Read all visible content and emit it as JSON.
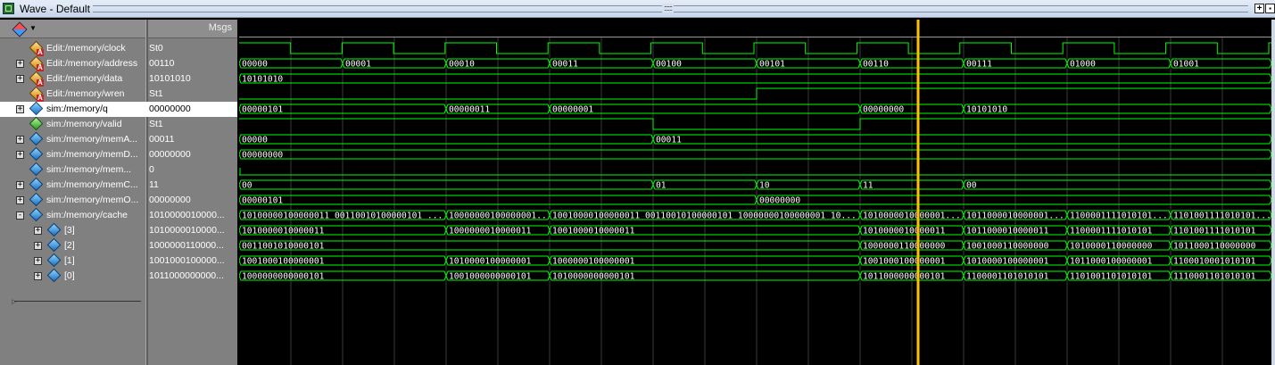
{
  "window": {
    "title": "Wave - Default"
  },
  "header": {
    "msgs_label": "Msgs"
  },
  "signals": [
    {
      "name": "Edit:/memory/clock",
      "value": "St0",
      "icon": "gold-diamond",
      "expander": ""
    },
    {
      "name": "Edit:/memory/address",
      "value": "00110",
      "icon": "gold-diamond",
      "expander": "+"
    },
    {
      "name": "Edit:/memory/data",
      "value": "10101010",
      "icon": "gold-diamond",
      "expander": "+"
    },
    {
      "name": "Edit:/memory/wren",
      "value": "St1",
      "icon": "gold-diamond",
      "expander": ""
    },
    {
      "name": "sim:/memory/q",
      "value": "00000000",
      "icon": "blue-diamond",
      "expander": "+",
      "selected": true
    },
    {
      "name": "sim:/memory/valid",
      "value": "St1",
      "icon": "green-diamond",
      "expander": ""
    },
    {
      "name": "sim:/memory/memA...",
      "value": "00011",
      "icon": "blue-diamond",
      "expander": "+"
    },
    {
      "name": "sim:/memory/memD...",
      "value": "00000000",
      "icon": "blue-diamond",
      "expander": "+"
    },
    {
      "name": "sim:/memory/mem...",
      "value": "0",
      "icon": "blue-diamond",
      "expander": ""
    },
    {
      "name": "sim:/memory/memC...",
      "value": "11",
      "icon": "blue-diamond",
      "expander": "+"
    },
    {
      "name": "sim:/memory/memO...",
      "value": "00000000",
      "icon": "blue-diamond",
      "expander": "+"
    },
    {
      "name": "sim:/memory/cache",
      "value": "1010000010000...",
      "icon": "blue-diamond",
      "expander": "-"
    },
    {
      "name": "[3]",
      "value": "1010000010000...",
      "icon": "blue-diamond",
      "expander": "+"
    },
    {
      "name": "[2]",
      "value": "1000000110000...",
      "icon": "blue-diamond",
      "expander": "+"
    },
    {
      "name": "[1]",
      "value": "1001000100000...",
      "icon": "blue-diamond",
      "expander": "+"
    },
    {
      "name": "[0]",
      "value": "1011000000000...",
      "icon": "blue-diamond",
      "expander": "+"
    }
  ],
  "waves": {
    "address": [
      "00000",
      "00001",
      "00010",
      "00011",
      "00100",
      "00101",
      "00110",
      "00111",
      "01000",
      "01001"
    ],
    "data": [
      "10101010"
    ],
    "q": [
      "00000101",
      "00000011",
      "00000001",
      "00000000",
      "10101010"
    ],
    "memA": [
      "00000",
      "00011"
    ],
    "memD": [
      "00000000"
    ],
    "memC": [
      "00",
      "01",
      "10",
      "11",
      "00"
    ],
    "memO": [
      "00000101",
      "00000000"
    ],
    "cache": [
      "10100000100000011 00110010100000101 ...",
      "10000000100000001...",
      "10010000100000011 00110010100000101 10000000100000001 10...",
      "1010000010000001...",
      "1011000010000001...",
      "1100001111010101...",
      "1101001111010101..."
    ],
    "cache3": [
      "1010000010000011",
      "1000000010000011",
      "1001000010000011",
      "1010000010000011",
      "1011000010000011",
      "1100001111010101",
      "1101001111010101"
    ],
    "cache2": [
      "0011001010000101",
      "1000000110000000",
      "1001000110000000",
      "1010000110000000",
      "1011000110000000"
    ],
    "cache1": [
      "1001000100000001",
      "1010000100000001",
      "1000000100000001",
      "1001000100000001",
      "1010000100000001",
      "1011000100000001",
      "1100010001010101"
    ],
    "cache0": [
      "1000000000000101",
      "1001000000000101",
      "1010000000000101",
      "1011000000000101",
      "1100001101010101",
      "1101001101010101",
      "1110001101010101"
    ]
  },
  "colors": {
    "wave": "#00ff00",
    "bus": "#00ff00",
    "grid": "#3a3a3a",
    "cursor": "#ffc000",
    "value_text": "#ffffff"
  }
}
